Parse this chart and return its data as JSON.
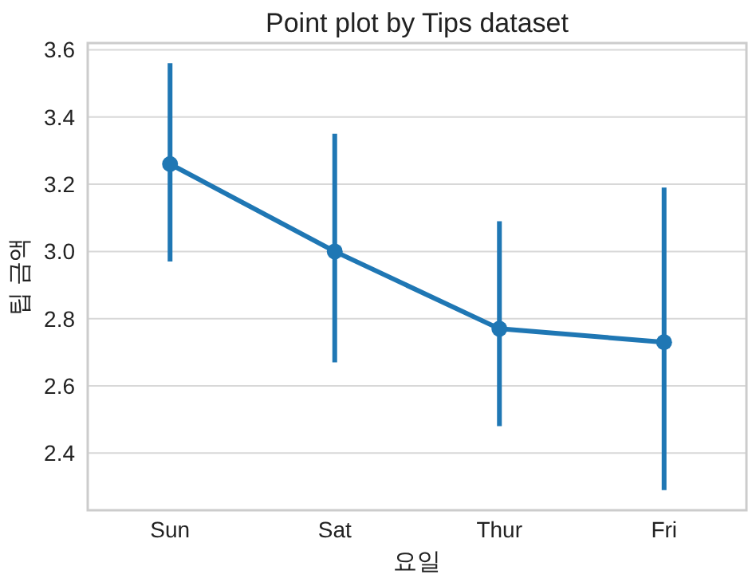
{
  "chart_data": {
    "type": "line",
    "title": "Point plot by Tips dataset",
    "xlabel": "요일",
    "ylabel": "팁 금액",
    "categories": [
      "Sun",
      "Sat",
      "Thur",
      "Fri"
    ],
    "series": [
      {
        "color": "#1f77b4",
        "values": [
          3.26,
          3.0,
          2.77,
          2.73
        ],
        "errors": [
          [
            2.97,
            3.56
          ],
          [
            2.67,
            3.35
          ],
          [
            2.48,
            3.09
          ],
          [
            2.29,
            3.19
          ]
        ]
      }
    ],
    "ylim": [
      2.23,
      3.62
    ],
    "yticks": [
      2.4,
      2.6,
      2.8,
      {
        "value": 3,
        "label": "3.0"
      },
      3.2,
      3.4,
      3.6
    ],
    "grid": "y",
    "marker": "circle",
    "line_style": "solid"
  }
}
